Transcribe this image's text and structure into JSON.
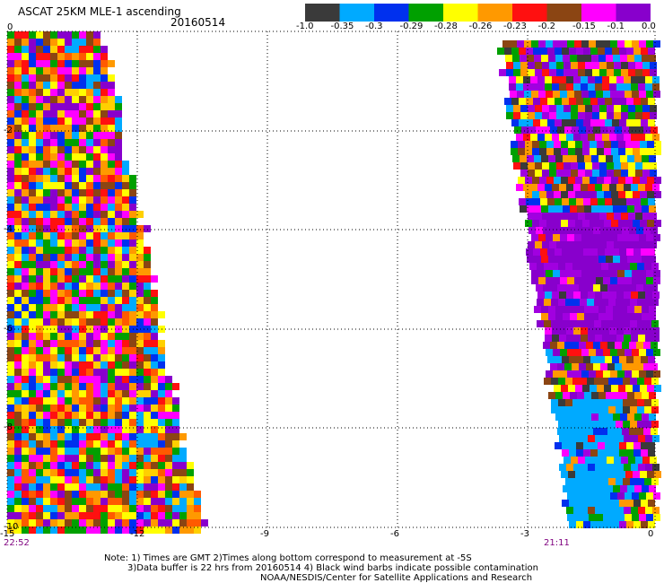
{
  "header": {
    "title": "ASCAT 25KM MLE-1 ascending",
    "date": "20160514"
  },
  "colorbar": {
    "labels": [
      "-1.0",
      "-0.35",
      "-0.3",
      "-0.29",
      "-0.28",
      "-0.26",
      "-0.23",
      "-0.2",
      "-0.15",
      "-0.1",
      "0.0"
    ],
    "colors": [
      "#3a3a3a",
      "#00aaff",
      "#0030ee",
      "#00a000",
      "#ffff00",
      "#ff9900",
      "#ff1010",
      "#8b4513",
      "#ff00ff",
      "#8800cc"
    ]
  },
  "axes": {
    "y_labels": [
      "0",
      "-2",
      "-4",
      "-6",
      "-8",
      "-10"
    ],
    "x_labels": [
      "-15",
      "-12",
      "-9",
      "-6",
      "-3",
      "0"
    ]
  },
  "times": {
    "left": "22:52",
    "right": "21:11"
  },
  "notes": {
    "line1": "Note: 1) Times are GMT 2)Times along bottom correspond to measurement at -5S",
    "line2": "3)Data buffer is 22 hrs from 20160514 4) Black wind barbs indicate possible contamination",
    "line3": "NOAA/NESDIS/Center for Satellite Applications and Research"
  }
}
